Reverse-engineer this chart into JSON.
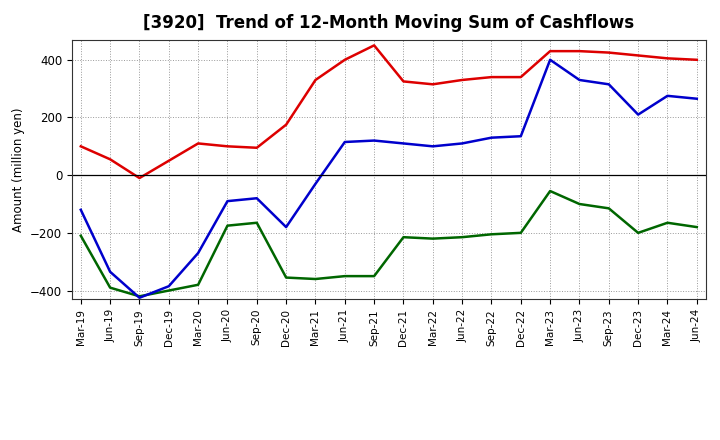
{
  "title": "[3920]  Trend of 12-Month Moving Sum of Cashflows",
  "ylabel": "Amount (million yen)",
  "x_labels": [
    "Mar-19",
    "Jun-19",
    "Sep-19",
    "Dec-19",
    "Mar-20",
    "Jun-20",
    "Sep-20",
    "Dec-20",
    "Mar-21",
    "Jun-21",
    "Sep-21",
    "Dec-21",
    "Mar-22",
    "Jun-22",
    "Sep-22",
    "Dec-22",
    "Mar-23",
    "Jun-23",
    "Sep-23",
    "Dec-23",
    "Mar-24",
    "Jun-24"
  ],
  "operating": [
    100,
    55,
    -10,
    50,
    110,
    100,
    95,
    175,
    330,
    400,
    450,
    325,
    315,
    330,
    340,
    340,
    430,
    430,
    425,
    415,
    405,
    400
  ],
  "investing": [
    -210,
    -390,
    -420,
    -400,
    -380,
    -175,
    -165,
    -355,
    -360,
    -350,
    -350,
    -215,
    -220,
    -215,
    -205,
    -200,
    -55,
    -100,
    -115,
    -200,
    -165,
    -180
  ],
  "free": [
    -120,
    -335,
    -425,
    -385,
    -270,
    -90,
    -80,
    -180,
    -30,
    115,
    120,
    110,
    100,
    110,
    130,
    135,
    400,
    330,
    315,
    210,
    275,
    265
  ],
  "operating_color": "#dd0000",
  "investing_color": "#006600",
  "free_color": "#0000cc",
  "ylim": [
    -430,
    470
  ],
  "yticks": [
    -400,
    -200,
    0,
    200,
    400
  ],
  "bg_color": "#ffffff",
  "grid_color": "#999999"
}
